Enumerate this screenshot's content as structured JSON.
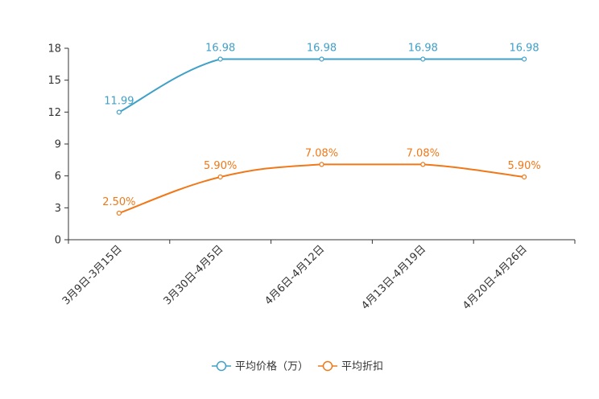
{
  "chart_data": {
    "type": "line",
    "title": "",
    "xlabel": "",
    "ylabel": "",
    "categories": [
      "3月9日-3月15日",
      "3月30日-4月5日",
      "4月6日-4月12日",
      "4月13日-4月19日",
      "4月20日-4月26日"
    ],
    "ylim": [
      0,
      18
    ],
    "yticks": [
      0,
      3,
      6,
      9,
      12,
      15,
      18
    ],
    "grid": false,
    "legend_position": "bottom-center",
    "series": [
      {
        "name": "平均价格（万）",
        "color": "#3fa0c8",
        "values": [
          11.99,
          16.98,
          16.98,
          16.98,
          16.98
        ],
        "labels": [
          "11.99",
          "16.98",
          "16.98",
          "16.98",
          "16.98"
        ]
      },
      {
        "name": "平均折扣",
        "color": "#f07818",
        "values": [
          2.5,
          5.9,
          7.08,
          7.08,
          5.9
        ],
        "labels": [
          "2.50%",
          "5.90%",
          "7.08%",
          "7.08%",
          "5.90%"
        ]
      }
    ]
  }
}
